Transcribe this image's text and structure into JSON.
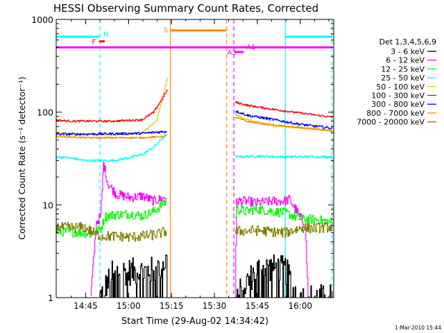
{
  "chart_data": {
    "type": "line",
    "title": "HESSI Observing Summary Count Rates, Corrected",
    "xlabel": "Start Time (29-Aug-02 14:34:42)",
    "ylabel": "Corrected Count Rate (s⁻¹ detector⁻¹)",
    "footer": "1-Mar-2010 15:44",
    "x_unit": "minutes since 14:34:42",
    "xlim": [
      0,
      97
    ],
    "ylim": [
      1,
      1000
    ],
    "yscale": "log",
    "x_ticks": [
      {
        "x": 10.3,
        "label": "14:45"
      },
      {
        "x": 25.3,
        "label": "15:00"
      },
      {
        "x": 40.3,
        "label": "15:15"
      },
      {
        "x": 55.3,
        "label": "15:30"
      },
      {
        "x": 70.3,
        "label": "15:45"
      },
      {
        "x": 85.3,
        "label": "16:00"
      }
    ],
    "y_ticks": [
      {
        "y": 1,
        "label": "1"
      },
      {
        "y": 10,
        "label": "10"
      },
      {
        "y": 100,
        "label": "100"
      },
      {
        "y": 1000,
        "label": "1000"
      }
    ],
    "legend_title": "Det 1,3,4,5,6,9",
    "legend_position": "right",
    "series": [
      {
        "name": "3 - 6 keV",
        "color": "#000000",
        "segments": [
          [
            [
              15,
              1
            ],
            [
              20,
              1.9
            ],
            [
              25,
              1.9
            ],
            [
              30,
              1.9
            ],
            [
              35,
              2.0
            ],
            [
              38.5,
              2.5
            ],
            [
              38.8,
              3.5
            ]
          ],
          [
            [
              62.5,
              1
            ],
            [
              70,
              2.0
            ],
            [
              75,
              2.1
            ],
            [
              80,
              2.0
            ],
            [
              85,
              1
            ],
            [
              96.5,
              1
            ]
          ]
        ]
      },
      {
        "name": "6 - 12 keV",
        "color": "#ff00ff",
        "segments": [
          [
            [
              12,
              1
            ],
            [
              14,
              6.5
            ],
            [
              15.5,
              7.5
            ],
            [
              16.5,
              28
            ],
            [
              18,
              17
            ],
            [
              21,
              13
            ],
            [
              26,
              12
            ],
            [
              30,
              12.5
            ],
            [
              34,
              11
            ],
            [
              38.5,
              12
            ]
          ],
          [
            [
              62.5,
              1
            ],
            [
              63,
              11
            ],
            [
              66,
              11
            ],
            [
              70,
              10.5
            ],
            [
              76,
              11
            ],
            [
              80,
              11
            ],
            [
              81.5,
              11.5
            ],
            [
              87,
              6
            ],
            [
              88,
              1
            ]
          ]
        ]
      },
      {
        "name": "12 - 25 keV",
        "color": "#00ff00",
        "segments": [
          [
            [
              0,
              5.2
            ],
            [
              10,
              5.0
            ],
            [
              12,
              4.8
            ],
            [
              15.5,
              5.5
            ],
            [
              17,
              7.5
            ],
            [
              20,
              7.8
            ],
            [
              26,
              8.0
            ],
            [
              30,
              7.6
            ],
            [
              34,
              8.5
            ],
            [
              38.5,
              11
            ]
          ],
          [
            [
              62.5,
              7
            ],
            [
              63,
              9
            ],
            [
              66,
              8.5
            ],
            [
              70,
              9
            ],
            [
              76,
              8.5
            ],
            [
              80,
              8.2
            ],
            [
              86,
              7
            ],
            [
              90,
              7
            ],
            [
              96.5,
              6.5
            ]
          ]
        ]
      },
      {
        "name": "25 - 50 keV",
        "color": "#00ffff",
        "segments": [
          [
            [
              0,
              33
            ],
            [
              5,
              32
            ],
            [
              10,
              30
            ],
            [
              15,
              30
            ],
            [
              20,
              30
            ],
            [
              25,
              32
            ],
            [
              30,
              35
            ],
            [
              34,
              42
            ],
            [
              37,
              52
            ],
            [
              38.5,
              58
            ]
          ],
          [
            [
              62.5,
              33
            ],
            [
              70,
              33.5
            ],
            [
              80,
              33
            ],
            [
              96.5,
              33
            ]
          ]
        ]
      },
      {
        "name": "50 - 100 keV",
        "color": "#d4d400",
        "segments": [
          [
            [
              0,
              60
            ],
            [
              5,
              58
            ],
            [
              10,
              57
            ],
            [
              20,
              57.5
            ],
            [
              30,
              60
            ],
            [
              35,
              80
            ],
            [
              37.5,
              160
            ],
            [
              38.8,
              240
            ]
          ],
          [
            [
              62.5,
              95
            ],
            [
              67,
              82
            ],
            [
              75,
              72
            ],
            [
              85,
              68
            ],
            [
              96.5,
              63
            ]
          ]
        ]
      },
      {
        "name": "100 - 300 keV",
        "color": "#ff0000",
        "segments": [
          [
            [
              0,
              82
            ],
            [
              5,
              80
            ],
            [
              10,
              80
            ],
            [
              20,
              80
            ],
            [
              30,
              83
            ],
            [
              34,
              100
            ],
            [
              37,
              140
            ],
            [
              38.8,
              175
            ]
          ],
          [
            [
              62.5,
              128
            ],
            [
              67,
              118
            ],
            [
              75,
              108
            ],
            [
              85,
              98
            ],
            [
              96.5,
              88
            ]
          ]
        ]
      },
      {
        "name": "300 - 800 keV",
        "color": "#0000ff",
        "segments": [
          [
            [
              0,
              58
            ],
            [
              10,
              58
            ],
            [
              20,
              58.5
            ],
            [
              30,
              59
            ],
            [
              38.5,
              62
            ]
          ],
          [
            [
              62.5,
              103
            ],
            [
              67,
              92
            ],
            [
              75,
              84
            ],
            [
              85,
              74
            ],
            [
              96.5,
              67
            ]
          ]
        ]
      },
      {
        "name": "800 - 7000 keV",
        "color": "#ff8800",
        "segments": [
          [
            [
              0,
              55
            ],
            [
              10,
              53
            ],
            [
              20,
              53
            ],
            [
              30,
              53
            ],
            [
              38.5,
              55
            ]
          ],
          [
            [
              62.5,
              88
            ],
            [
              67,
              79
            ],
            [
              75,
              73
            ],
            [
              85,
              68
            ],
            [
              96.5,
              63
            ]
          ]
        ]
      },
      {
        "name": "7000 - 20000 keV",
        "color": "#808000",
        "segments": [
          [
            [
              0,
              5.7
            ],
            [
              10,
              5.7
            ],
            [
              12,
              5.2
            ],
            [
              15.5,
              4.6
            ],
            [
              20,
              4.6
            ],
            [
              26,
              4.5
            ],
            [
              30,
              4.6
            ],
            [
              35,
              4.8
            ],
            [
              38.5,
              5.2
            ]
          ],
          [
            [
              62.5,
              5.2
            ],
            [
              70,
              5.3
            ],
            [
              80,
              5.0
            ],
            [
              86,
              5.7
            ],
            [
              90,
              5.6
            ],
            [
              96.5,
              5.8
            ]
          ]
        ]
      }
    ],
    "flag_bars": [
      {
        "label": "",
        "color": "#00ffff",
        "x_start": 0,
        "x_end": 15,
        "y": 650
      },
      {
        "label": "",
        "color": "#00ffff",
        "x_start": 80,
        "x_end": 96.5,
        "y": 650
      },
      {
        "label": "",
        "color": "#ff00ff",
        "x_start": 0,
        "x_end": 96.5,
        "y": 500
      },
      {
        "label": "",
        "color": "#ff8800",
        "x_start": 40,
        "x_end": 59.5,
        "y": 760
      },
      {
        "label": "",
        "color": "#ff0000",
        "x_start": 15,
        "x_end": 17,
        "y": 580
      },
      {
        "label": "",
        "color": "#ff00ff",
        "x_start": 62.5,
        "x_end": 65.5,
        "y": 445
      }
    ],
    "flag_labels": [
      {
        "text": "N",
        "color": "#00ffff",
        "x": 16.5,
        "y": 700
      },
      {
        "text": "F",
        "color": "#ff0000",
        "x": 12.5,
        "y": 580
      },
      {
        "text": "S",
        "color": "#ff8800",
        "x": 37.5,
        "y": 780
      },
      {
        "text": "A1",
        "color": "#ff00ff",
        "x": 66.5,
        "y": 510
      },
      {
        "text": "A3",
        "color": "#ff00ff",
        "x": 59.8,
        "y": 445
      }
    ],
    "vlines": [
      {
        "x": 15.3,
        "color": "#00ffff",
        "style": "dashed"
      },
      {
        "x": 39.9,
        "color": "#ff8800",
        "style": "solid"
      },
      {
        "x": 59.6,
        "color": "#ff8800",
        "style": "dashed"
      },
      {
        "x": 62.1,
        "color": "#ff00ff",
        "style": "dashed"
      },
      {
        "x": 80.1,
        "color": "#00ffff",
        "style": "solid"
      },
      {
        "x": 96.4,
        "color": "#00ffff",
        "style": "dashed"
      }
    ]
  }
}
